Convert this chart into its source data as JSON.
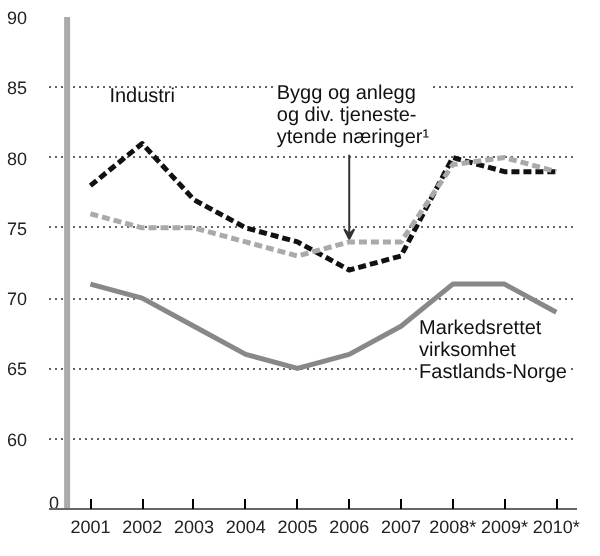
{
  "chart_data": {
    "type": "line",
    "categories": [
      "2001",
      "2002",
      "2003",
      "2004",
      "2005",
      "2006",
      "2007",
      "2008*",
      "2009*",
      "2010*"
    ],
    "ylim": [
      55,
      90
    ],
    "yticks": [
      60,
      65,
      70,
      75,
      80,
      85,
      90
    ],
    "grid": "y",
    "annotations": [
      "0"
    ],
    "series": [
      {
        "name": "Industri",
        "color": "#111111",
        "line_style": "dashed",
        "values": [
          78,
          81,
          77,
          75,
          74,
          72,
          73,
          80,
          79,
          79
        ]
      },
      {
        "name": "Bygg og anlegg\nog div. tjeneste-\nytende næringer¹",
        "color": "#aaaaaa",
        "line_style": "dashed",
        "values": [
          76,
          75,
          75,
          74,
          73,
          74,
          74,
          79.5,
          80,
          79
        ]
      },
      {
        "name": "Markedsrettet\nvirksomhet\nFastlands-Norge",
        "color": "#888888",
        "line_style": "solid",
        "values": [
          71,
          70,
          68,
          66,
          65,
          66,
          68,
          71,
          71,
          69
        ]
      }
    ]
  }
}
